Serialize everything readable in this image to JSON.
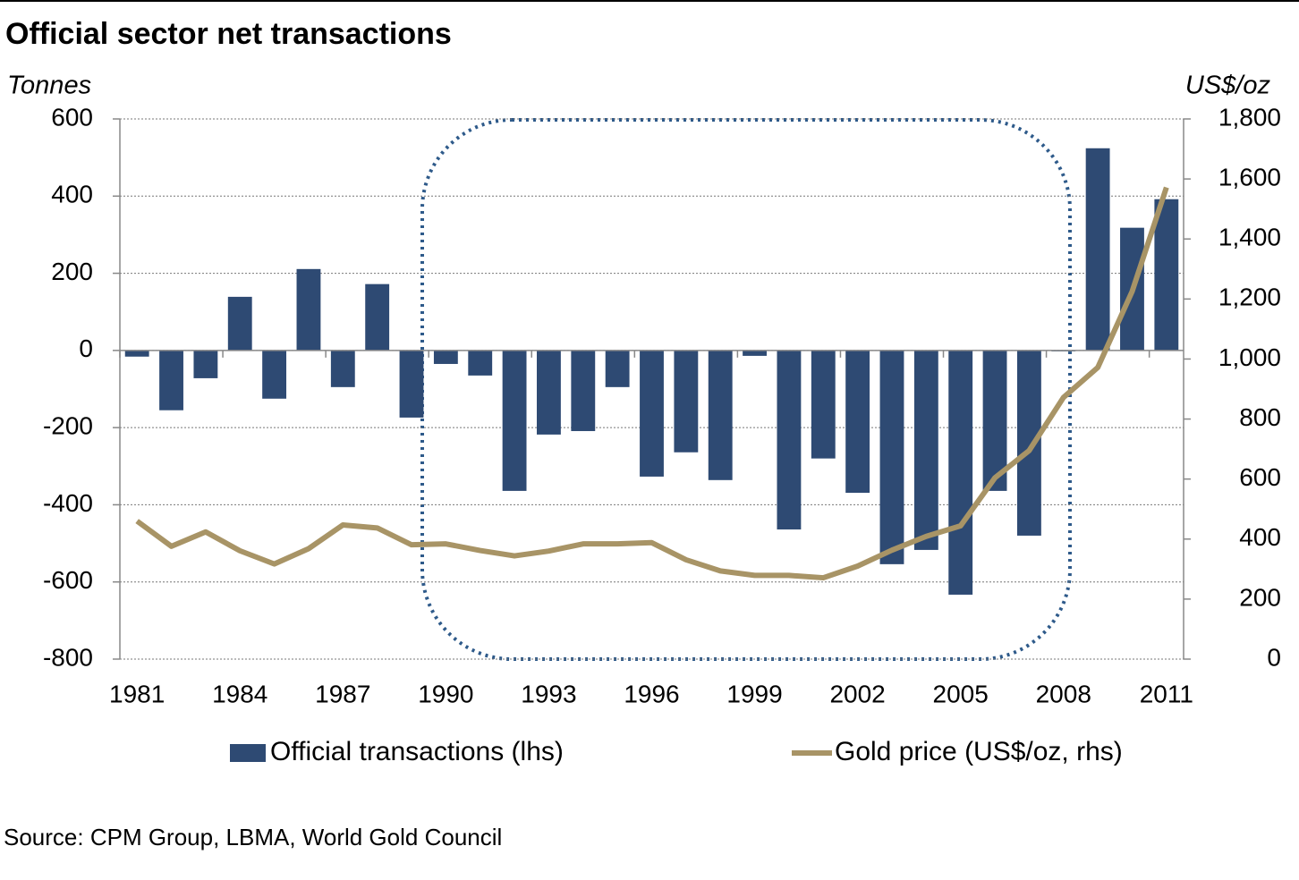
{
  "chart_data": {
    "type": "bar_line",
    "title": "Official sector net transactions",
    "y_label": "Tonnes",
    "y2_label": "US$/oz",
    "source": "Source: CPM Group, LBMA, World Gold Council",
    "categories": [
      "1981",
      null,
      null,
      "1984",
      null,
      null,
      "1987",
      null,
      null,
      "1990",
      null,
      null,
      "1993",
      null,
      null,
      "1996",
      null,
      null,
      "1999",
      null,
      null,
      "2002",
      null,
      null,
      "2005",
      null,
      null,
      "2008",
      null,
      null,
      "2011"
    ],
    "series": [
      {
        "name": "Official transactions (lhs)",
        "color": "#2e4a73",
        "type": "bar",
        "values": [
          -16,
          -155,
          -72,
          139,
          -125,
          211,
          -95,
          172,
          -174,
          -35,
          -65,
          -364,
          -218,
          -209,
          -95,
          -327,
          -264,
          -336,
          -14,
          -464,
          -280,
          -369,
          -554,
          -517,
          -633,
          -364,
          -480,
          -2,
          524,
          318,
          392
        ]
      },
      {
        "name": "Gold price (US$/oz, rhs)",
        "color": "#a89466",
        "type": "line",
        "axis": "y2",
        "values": [
          460,
          376,
          424,
          361,
          317,
          368,
          447,
          437,
          381,
          384,
          362,
          344,
          360,
          384,
          384,
          388,
          331,
          294,
          279,
          279,
          271,
          310,
          363,
          409,
          444,
          604,
          695,
          872,
          972,
          1225,
          1572
        ]
      }
    ],
    "ylim": [
      -800,
      600
    ],
    "yticks": [
      -800,
      -600,
      -400,
      -200,
      0,
      200,
      400,
      600
    ],
    "y2lim": [
      0,
      1800
    ],
    "y2ticks": [
      0,
      200,
      400,
      600,
      800,
      {
        "value": 1000,
        "label": "1,000"
      },
      {
        "value": 1200,
        "label": "1,200"
      },
      {
        "value": 1400,
        "label": "1,400"
      },
      {
        "value": 1600,
        "label": "1,600"
      },
      {
        "value": 1800,
        "label": "1,800"
      }
    ],
    "grid": true,
    "legend": "bottom"
  }
}
